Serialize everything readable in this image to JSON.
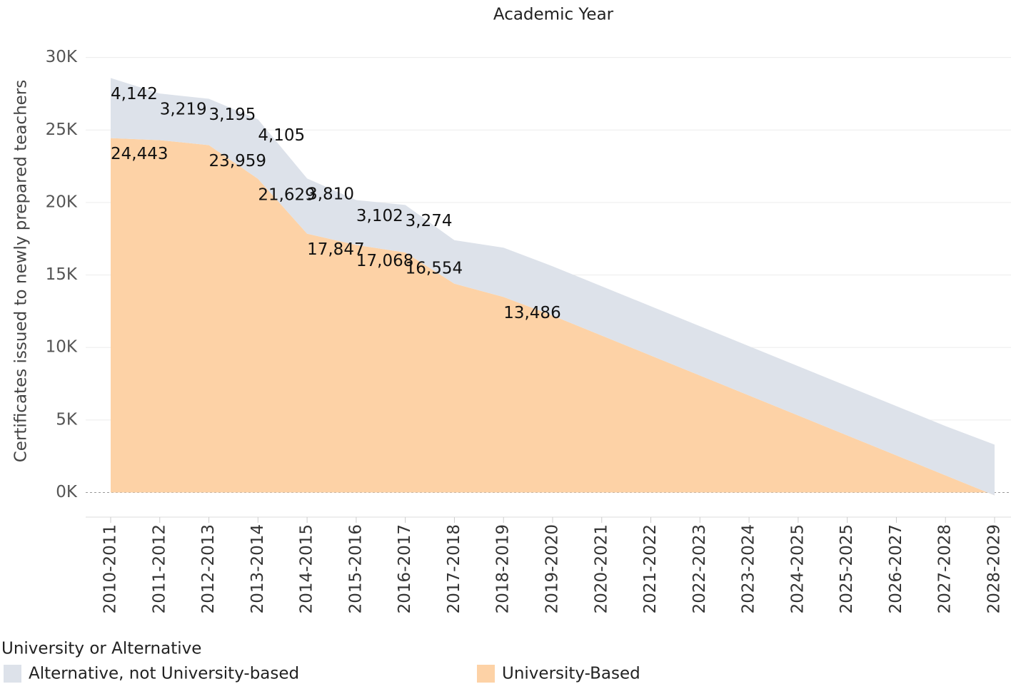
{
  "chart_data": {
    "type": "stacked_area",
    "title": "Academic Year",
    "y_label": "Certificates issued to newly prepared teachers",
    "categories": [
      "2010-2011",
      "2011-2012",
      "2012-2013",
      "2013-2014",
      "2014-2015",
      "2015-2016",
      "2016-2017",
      "2017-2018",
      "2018-2019",
      "2019-2020",
      "2020-2021",
      "2021-2022",
      "2022-2023",
      "2023-2024",
      "2024-2025",
      "2025-2025",
      "2026-2027",
      "2027-2028",
      "2028-2029"
    ],
    "series": [
      {
        "name": "Alternative, not University-based",
        "color": "#dde2ea",
        "values": [
          4142,
          3219,
          3195,
          4105,
          3810,
          3102,
          3274,
          3000,
          3400,
          3400,
          3400,
          3400,
          3400,
          3400,
          3400,
          3400,
          3400,
          3400,
          3500
        ],
        "value_labels": [
          "4,142",
          "3,219",
          "3,195",
          "4,105",
          "3,810",
          "3,102",
          "3,274",
          null,
          null,
          null,
          null,
          null,
          null,
          null,
          null,
          null,
          null,
          null,
          null
        ]
      },
      {
        "name": "University-Based",
        "color": "#fdd2a6",
        "values": [
          24443,
          24300,
          23959,
          21629,
          17847,
          17068,
          16554,
          14400,
          13486,
          12200,
          10822,
          9444,
          8067,
          6689,
          5311,
          3933,
          2556,
          1178,
          -200
        ],
        "value_labels": [
          "24,443",
          null,
          "23,959",
          "21,629",
          "17,847",
          "17,068",
          "16,554",
          null,
          "13,486",
          null,
          null,
          null,
          null,
          null,
          null,
          null,
          null,
          null,
          null
        ]
      }
    ],
    "legend_title": "University or Alternative",
    "ylim": [
      -1700,
      32000
    ],
    "yticks": [
      {
        "value": 0,
        "label": "0K"
      },
      {
        "value": 5000,
        "label": "5K"
      },
      {
        "value": 10000,
        "label": "10K"
      },
      {
        "value": 15000,
        "label": "15K"
      },
      {
        "value": 20000,
        "label": "20K"
      },
      {
        "value": 25000,
        "label": "25K"
      },
      {
        "value": 30000,
        "label": "30K"
      }
    ],
    "grid": true,
    "legend": "bottom"
  }
}
